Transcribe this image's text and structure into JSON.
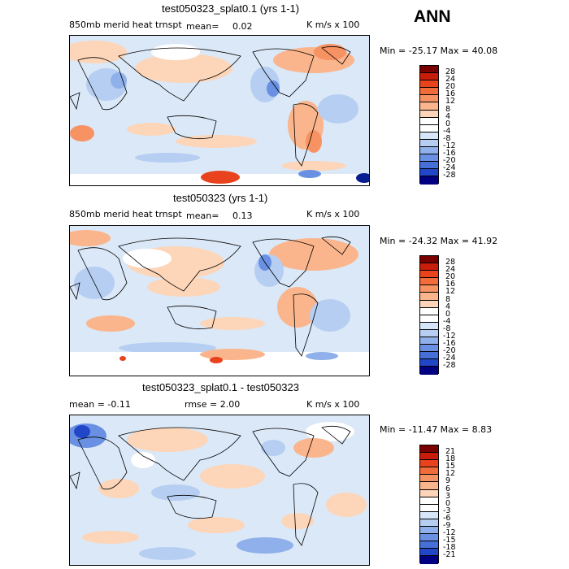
{
  "header": {
    "season": "ANN"
  },
  "panels": [
    {
      "title": "test050323_splat0.1 (yrs 1-1)",
      "variable": "850mb merid heat trnspt",
      "mean_label": "mean=",
      "mean_value": "0.02",
      "units": "K m/s x 100",
      "minmax": "Min = -25.17 Max =  40.08",
      "levels": [
        "28",
        "24",
        "20",
        "16",
        "12",
        "8",
        "4",
        "0",
        "-4",
        "-8",
        "-12",
        "-16",
        "-20",
        "-24",
        "-28"
      ]
    },
    {
      "title": "test050323 (yrs 1-1)",
      "variable": "850mb merid heat trnspt",
      "mean_label": "mean=",
      "mean_value": "0.13",
      "units": "K m/s x 100",
      "minmax": "Min = -24.32 Max =  41.92",
      "levels": [
        "28",
        "24",
        "20",
        "16",
        "12",
        "8",
        "4",
        "0",
        "-4",
        "-8",
        "-12",
        "-16",
        "-20",
        "-24",
        "-28"
      ]
    },
    {
      "title": "test050323_splat0.1 - test050323",
      "mean_text": "mean =   -0.11",
      "rmse_text": "rmse =    2.00",
      "units": "K m/s x 100",
      "minmax": "Min = -11.47 Max =   8.83",
      "levels": [
        "21",
        "18",
        "15",
        "12",
        "9",
        "6",
        "3",
        "0",
        "-3",
        "-6",
        "-9",
        "-12",
        "-15",
        "-18",
        "-21"
      ]
    }
  ],
  "colors": {
    "scale": [
      "#7a0000",
      "#c81d0a",
      "#e8431c",
      "#f26b3a",
      "#f79262",
      "#fbb58c",
      "#fdd5b8",
      "#ffffff",
      "#d6e5f8",
      "#b6cef2",
      "#8fb0ea",
      "#6990e2",
      "#4670d8",
      "#2146c8",
      "#0a1f8f",
      "#000080"
    ]
  },
  "chart_data": [
    {
      "type": "heatmap",
      "title": "test050323_splat0.1 (yrs 1-1)",
      "subtitle": "850mb merid heat trnspt",
      "mean": 0.02,
      "units": "K m/s x 100",
      "min": -25.17,
      "max": 40.08,
      "contour_levels": [
        -28,
        -24,
        -20,
        -16,
        -12,
        -8,
        -4,
        0,
        4,
        8,
        12,
        16,
        20,
        24,
        28
      ]
    },
    {
      "type": "heatmap",
      "title": "test050323 (yrs 1-1)",
      "subtitle": "850mb merid heat trnspt",
      "mean": 0.13,
      "units": "K m/s x 100",
      "min": -24.32,
      "max": 41.92,
      "contour_levels": [
        -28,
        -24,
        -20,
        -16,
        -12,
        -8,
        -4,
        0,
        4,
        8,
        12,
        16,
        20,
        24,
        28
      ]
    },
    {
      "type": "heatmap",
      "title": "test050323_splat0.1 - test050323",
      "mean": -0.11,
      "rmse": 2.0,
      "units": "K m/s x 100",
      "min": -11.47,
      "max": 8.83,
      "contour_levels": [
        -21,
        -18,
        -15,
        -12,
        -9,
        -6,
        -3,
        0,
        3,
        6,
        9,
        12,
        15,
        18,
        21
      ]
    }
  ]
}
